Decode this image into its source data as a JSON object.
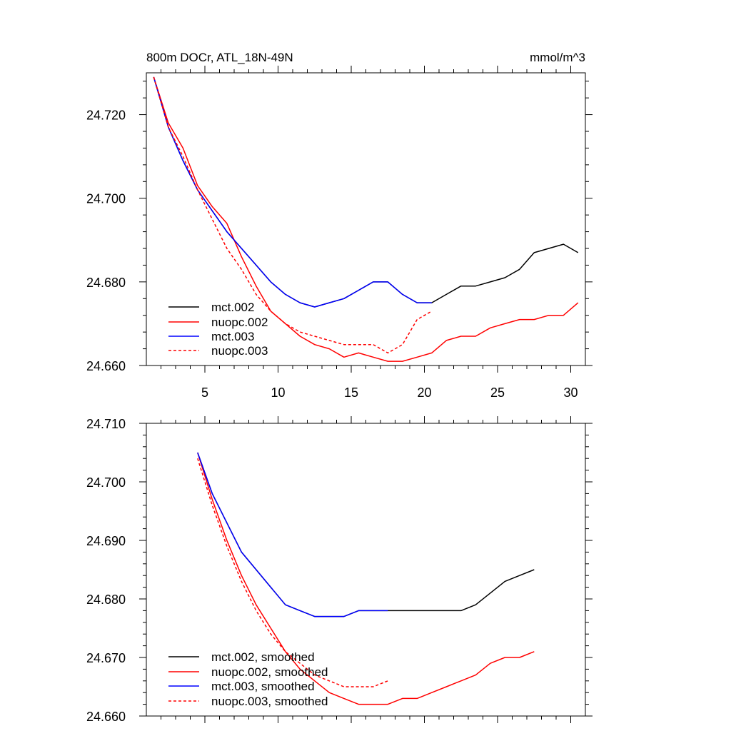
{
  "chart_data": [
    {
      "type": "line",
      "title": "800m DOCr, ATL_18N-49N",
      "units": "mmol/m^3",
      "xlim": [
        1,
        31
      ],
      "ylim": [
        24.66,
        24.73
      ],
      "xticks": [
        5,
        10,
        15,
        20,
        25,
        30
      ],
      "yticks": [
        24.66,
        24.68,
        24.7,
        24.72
      ],
      "ytick_labels": [
        "24.660",
        "24.680",
        "24.700",
        "24.720"
      ],
      "legend_position": "bottom-left",
      "series": [
        {
          "name": "mct.002",
          "color": "#000000",
          "dash": false,
          "x": [
            1.5,
            2.5,
            3.5,
            4.5,
            5.5,
            6.5,
            7.5,
            8.5,
            9.5,
            10.5,
            11.5,
            12.5,
            13.5,
            14.5,
            15.5,
            16.5,
            17.5,
            18.5,
            19.5,
            20.5,
            21.5,
            22.5,
            23.5,
            24.5,
            25.5,
            26.5,
            27.5,
            28.5,
            29.5,
            30.5
          ],
          "values": [
            24.729,
            24.717,
            24.709,
            24.702,
            24.697,
            24.692,
            24.688,
            24.684,
            24.68,
            24.677,
            24.675,
            24.674,
            24.675,
            24.676,
            24.678,
            24.68,
            24.68,
            24.677,
            24.675,
            24.675,
            24.677,
            24.679,
            24.679,
            24.68,
            24.681,
            24.683,
            24.687,
            24.688,
            24.689,
            24.687
          ]
        },
        {
          "name": "nuopc.002",
          "color": "#ff0000",
          "dash": false,
          "x": [
            1.5,
            2.5,
            3.5,
            4.5,
            5.5,
            6.5,
            7.5,
            8.5,
            9.5,
            10.5,
            11.5,
            12.5,
            13.5,
            14.5,
            15.5,
            16.5,
            17.5,
            18.5,
            19.5,
            20.5,
            21.5,
            22.5,
            23.5,
            24.5,
            25.5,
            26.5,
            27.5,
            28.5,
            29.5,
            30.5
          ],
          "values": [
            24.729,
            24.718,
            24.712,
            24.703,
            24.698,
            24.694,
            24.686,
            24.679,
            24.673,
            24.67,
            24.667,
            24.665,
            24.664,
            24.662,
            24.663,
            24.662,
            24.661,
            24.661,
            24.662,
            24.663,
            24.666,
            24.667,
            24.667,
            24.669,
            24.67,
            24.671,
            24.671,
            24.672,
            24.672,
            24.675
          ]
        },
        {
          "name": "mct.003",
          "color": "#0000ff",
          "dash": false,
          "x": [
            1.5,
            2.5,
            3.5,
            4.5,
            5.5,
            6.5,
            7.5,
            8.5,
            9.5,
            10.5,
            11.5,
            12.5,
            13.5,
            14.5,
            15.5,
            16.5,
            17.5,
            18.5,
            19.5,
            20.5
          ],
          "values": [
            24.729,
            24.717,
            24.709,
            24.702,
            24.697,
            24.692,
            24.688,
            24.684,
            24.68,
            24.677,
            24.675,
            24.674,
            24.675,
            24.676,
            24.678,
            24.68,
            24.68,
            24.677,
            24.675,
            24.675
          ]
        },
        {
          "name": "nuopc.003",
          "color": "#ff0000",
          "dash": true,
          "x": [
            1.5,
            2.5,
            3.5,
            4.5,
            5.5,
            6.5,
            7.5,
            8.5,
            9.5,
            10.5,
            11.5,
            12.5,
            13.5,
            14.5,
            15.5,
            16.5,
            17.5,
            18.5,
            19.5,
            20.5
          ],
          "values": [
            24.729,
            24.717,
            24.71,
            24.702,
            24.695,
            24.688,
            24.683,
            24.677,
            24.673,
            24.67,
            24.668,
            24.667,
            24.666,
            24.665,
            24.665,
            24.665,
            24.663,
            24.665,
            24.671,
            24.673
          ]
        }
      ]
    },
    {
      "type": "line",
      "xlim": [
        1,
        31
      ],
      "ylim": [
        24.66,
        24.71
      ],
      "xticks": [
        5,
        10,
        15,
        20,
        25,
        30
      ],
      "yticks": [
        24.66,
        24.67,
        24.68,
        24.69,
        24.7,
        24.71
      ],
      "ytick_labels": [
        "24.660",
        "24.670",
        "24.680",
        "24.690",
        "24.700",
        "24.710"
      ],
      "legend_position": "bottom-left",
      "series": [
        {
          "name": "mct.002, smoothed",
          "color": "#000000",
          "dash": false,
          "x": [
            4.5,
            5.5,
            6.5,
            7.5,
            8.5,
            9.5,
            10.5,
            11.5,
            12.5,
            13.5,
            14.5,
            15.5,
            16.5,
            17.5,
            18.5,
            19.5,
            20.5,
            21.5,
            22.5,
            23.5,
            24.5,
            25.5,
            26.5,
            27.5
          ],
          "values": [
            24.705,
            24.698,
            24.693,
            24.688,
            24.685,
            24.682,
            24.679,
            24.678,
            24.677,
            24.677,
            24.677,
            24.678,
            24.678,
            24.678,
            24.678,
            24.678,
            24.678,
            24.678,
            24.678,
            24.679,
            24.681,
            24.683,
            24.684,
            24.685
          ]
        },
        {
          "name": "nuopc.002, smoothed",
          "color": "#ff0000",
          "dash": false,
          "x": [
            4.5,
            5.5,
            6.5,
            7.5,
            8.5,
            9.5,
            10.5,
            11.5,
            12.5,
            13.5,
            14.5,
            15.5,
            16.5,
            17.5,
            18.5,
            19.5,
            20.5,
            21.5,
            22.5,
            23.5,
            24.5,
            25.5,
            26.5,
            27.5
          ],
          "values": [
            24.705,
            24.697,
            24.69,
            24.684,
            24.679,
            24.675,
            24.671,
            24.668,
            24.666,
            24.664,
            24.663,
            24.662,
            24.662,
            24.662,
            24.663,
            24.663,
            24.664,
            24.665,
            24.666,
            24.667,
            24.669,
            24.67,
            24.67,
            24.671
          ]
        },
        {
          "name": "mct.003, smoothed",
          "color": "#0000ff",
          "dash": false,
          "x": [
            4.5,
            5.5,
            6.5,
            7.5,
            8.5,
            9.5,
            10.5,
            11.5,
            12.5,
            13.5,
            14.5,
            15.5,
            16.5,
            17.5
          ],
          "values": [
            24.705,
            24.698,
            24.693,
            24.688,
            24.685,
            24.682,
            24.679,
            24.678,
            24.677,
            24.677,
            24.677,
            24.678,
            24.678,
            24.678
          ]
        },
        {
          "name": "nuopc.003, smoothed",
          "color": "#ff0000",
          "dash": true,
          "x": [
            4.5,
            5.5,
            6.5,
            7.5,
            8.5,
            9.5,
            10.5,
            11.5,
            12.5,
            13.5,
            14.5,
            15.5,
            16.5,
            17.5
          ],
          "values": [
            24.704,
            24.696,
            24.689,
            24.683,
            24.678,
            24.674,
            24.671,
            24.669,
            24.667,
            24.666,
            24.665,
            24.665,
            24.665,
            24.666
          ]
        }
      ]
    }
  ]
}
